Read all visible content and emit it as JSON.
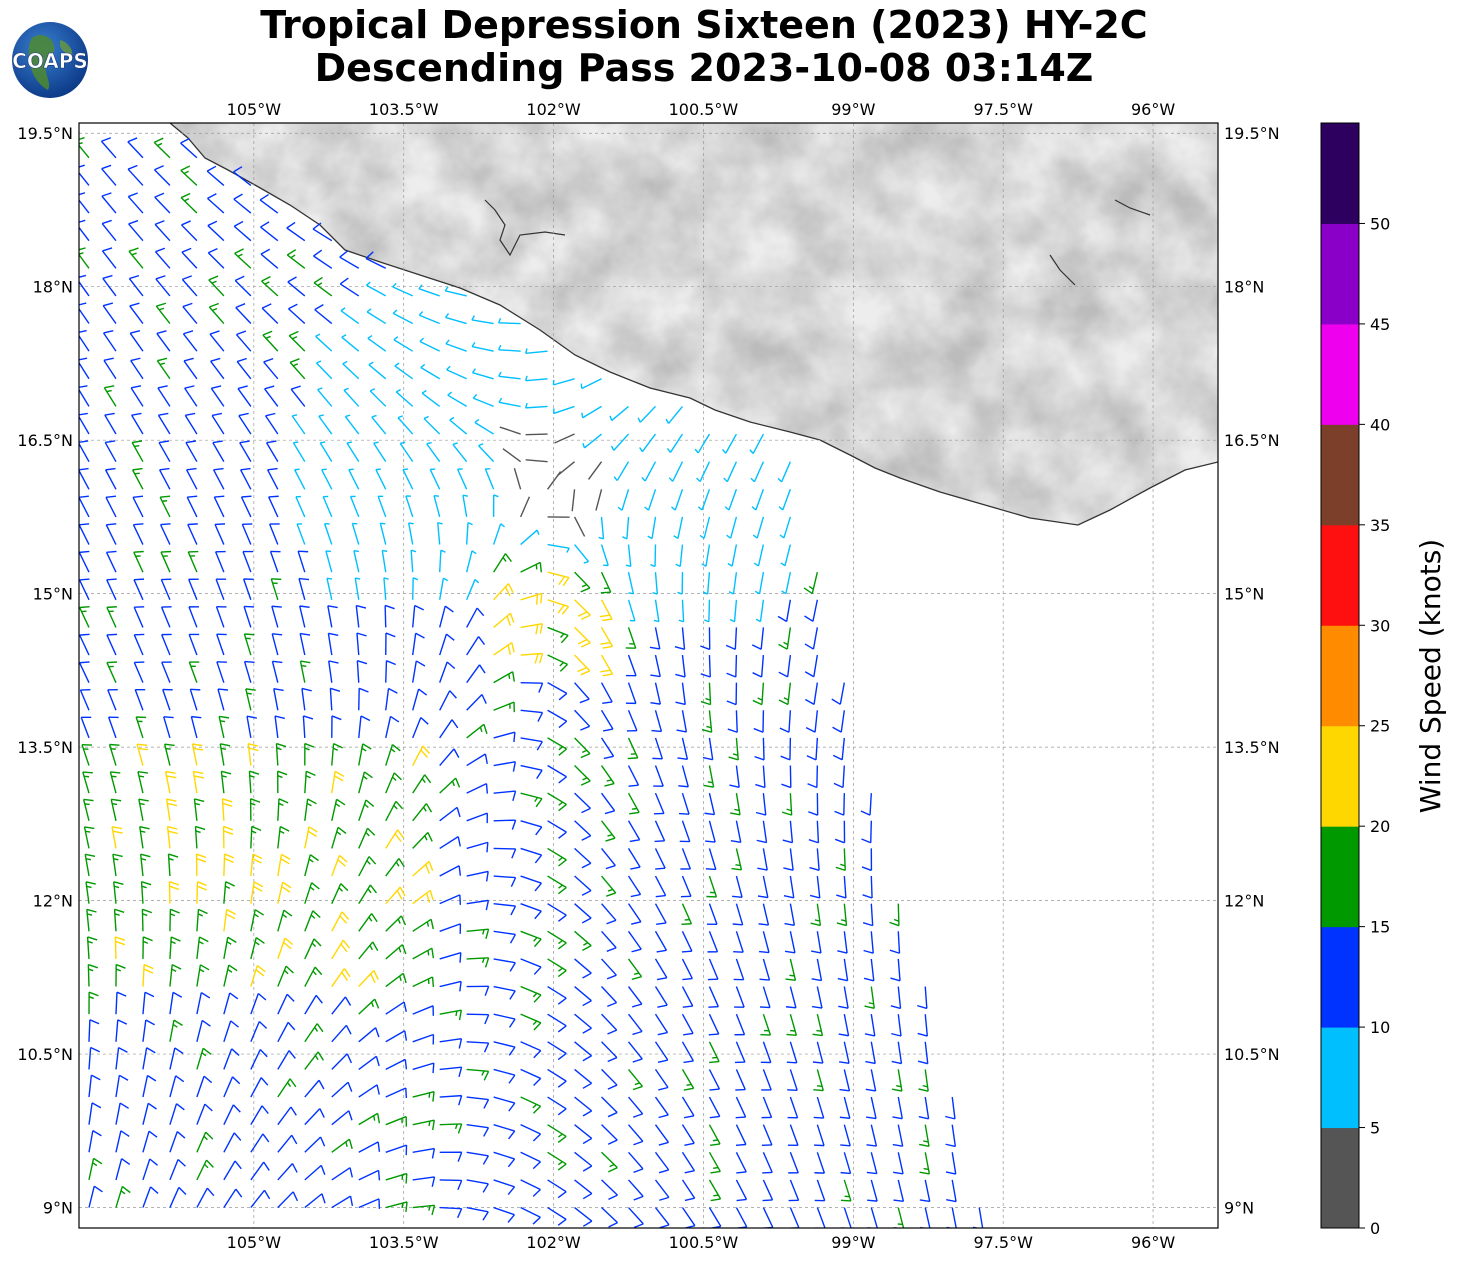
{
  "title": {
    "line1": "Tropical Depression Sixteen (2023) HY-2C",
    "line2": "Descending Pass 2023-10-08 03:14Z"
  },
  "logo": {
    "text": "COAPS",
    "icon": "globe-logo-icon"
  },
  "map": {
    "lon_range": [
      -106.75,
      -95.35
    ],
    "lat_range": [
      8.8,
      19.6
    ],
    "lon_ticks": [
      "105°W",
      "103.5°W",
      "102°W",
      "100.5°W",
      "99°W",
      "97.5°W",
      "96°W"
    ],
    "lat_ticks": [
      "19.5°N",
      "18°N",
      "16.5°N",
      "15°N",
      "13.5°N",
      "12°N",
      "10.5°N",
      "9°N"
    ],
    "grid": "dashed",
    "land_shading": "grayscale-elevation"
  },
  "colorbar": {
    "label": "Wind Speed (knots)",
    "ticks": [
      "0",
      "5",
      "10",
      "15",
      "20",
      "25",
      "30",
      "35",
      "40",
      "45",
      "50"
    ],
    "colors": [
      "#555555",
      "#00bfff",
      "#0033ff",
      "#009900",
      "#ffd700",
      "#ff8c00",
      "#ff1010",
      "#7b3f2a",
      "#ee00ee",
      "#8b00c8",
      "#2d005f"
    ]
  },
  "chart_data": {
    "type": "wind-barbs",
    "units": "knots",
    "center_of_circulation": {
      "lon": -102.0,
      "lat": 16.1
    },
    "swath": "descending pass, western edge near 106.7°W, eastern edge from ~100.0°W at 17.7°N to ~97.7°W at 9.0°N"
  }
}
